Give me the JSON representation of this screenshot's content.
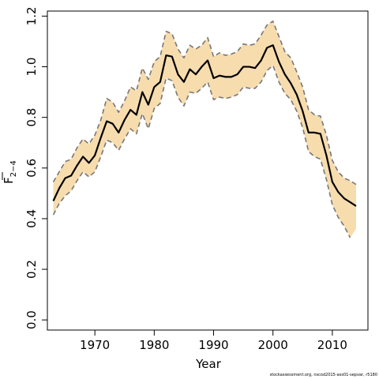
{
  "chart_data": {
    "type": "line",
    "title": "",
    "xlabel": "Year",
    "ylabel_main": "F",
    "ylabel_sub": "2−4",
    "xlim": [
      1962,
      2016
    ],
    "ylim": [
      -0.04,
      1.22
    ],
    "xticks": [
      1970,
      1980,
      1990,
      2000,
      2010
    ],
    "yticks": [
      0.0,
      0.2,
      0.4,
      0.6,
      0.8,
      1.0,
      1.2
    ],
    "ytick_labels": [
      "0.0",
      "0.2",
      "0.4",
      "0.6",
      "0.8",
      "1.0",
      "1.2"
    ],
    "grid": false,
    "legend": "none",
    "series": [
      {
        "role": "estimate",
        "color": "#000000",
        "x": [
          1963,
          1964,
          1965,
          1966,
          1967,
          1968,
          1969,
          1970,
          1971,
          1972,
          1973,
          1974,
          1975,
          1976,
          1977,
          1978,
          1979,
          1980,
          1981,
          1982,
          1983,
          1984,
          1985,
          1986,
          1987,
          1988,
          1989,
          1990,
          1991,
          1992,
          1993,
          1994,
          1995,
          1996,
          1997,
          1998,
          1999,
          2000,
          2001,
          2002,
          2003,
          2004,
          2005,
          2006,
          2007,
          2008,
          2009,
          2010,
          2011,
          2012,
          2013,
          2014
        ],
        "y": [
          0.47,
          0.52,
          0.56,
          0.57,
          0.61,
          0.645,
          0.62,
          0.65,
          0.72,
          0.785,
          0.775,
          0.74,
          0.79,
          0.83,
          0.81,
          0.9,
          0.85,
          0.92,
          0.94,
          1.045,
          1.04,
          0.97,
          0.94,
          0.99,
          0.97,
          1.0,
          1.025,
          0.955,
          0.965,
          0.96,
          0.96,
          0.97,
          1.0,
          1.0,
          0.995,
          1.025,
          1.075,
          1.085,
          1.02,
          0.97,
          0.935,
          0.89,
          0.825,
          0.74,
          0.74,
          0.735,
          0.65,
          0.545,
          0.505,
          0.48,
          0.465,
          0.45
        ]
      },
      {
        "role": "upper bound",
        "color": "#777777",
        "x": [
          1963,
          1964,
          1965,
          1966,
          1967,
          1968,
          1969,
          1970,
          1971,
          1972,
          1973,
          1974,
          1975,
          1976,
          1977,
          1978,
          1979,
          1980,
          1981,
          1982,
          1983,
          1984,
          1985,
          1986,
          1987,
          1988,
          1989,
          1990,
          1991,
          1992,
          1993,
          1994,
          1995,
          1996,
          1997,
          1998,
          1999,
          2000,
          2001,
          2002,
          2003,
          2004,
          2005,
          2006,
          2007,
          2008,
          2009,
          2010,
          2011,
          2012,
          2013,
          2014
        ],
        "y": [
          0.545,
          0.585,
          0.625,
          0.635,
          0.68,
          0.715,
          0.695,
          0.73,
          0.79,
          0.875,
          0.86,
          0.82,
          0.865,
          0.92,
          0.905,
          0.995,
          0.95,
          1.02,
          1.04,
          1.14,
          1.13,
          1.07,
          1.035,
          1.085,
          1.07,
          1.085,
          1.115,
          1.04,
          1.055,
          1.045,
          1.05,
          1.06,
          1.09,
          1.085,
          1.09,
          1.125,
          1.165,
          1.18,
          1.12,
          1.06,
          1.035,
          0.98,
          0.92,
          0.83,
          0.81,
          0.805,
          0.73,
          0.63,
          0.585,
          0.56,
          0.55,
          0.535
        ]
      },
      {
        "role": "lower bound",
        "color": "#777777",
        "x": [
          1963,
          1964,
          1965,
          1966,
          1967,
          1968,
          1969,
          1970,
          1971,
          1972,
          1973,
          1974,
          1975,
          1976,
          1977,
          1978,
          1979,
          1980,
          1981,
          1982,
          1983,
          1984,
          1985,
          1986,
          1987,
          1988,
          1989,
          1990,
          1991,
          1992,
          1993,
          1994,
          1995,
          1996,
          1997,
          1998,
          1999,
          2000,
          2001,
          2002,
          2003,
          2004,
          2005,
          2006,
          2007,
          2008,
          2009,
          2010,
          2011,
          2012,
          2013
        ],
        "y": [
          0.415,
          0.46,
          0.49,
          0.51,
          0.55,
          0.585,
          0.565,
          0.585,
          0.645,
          0.71,
          0.7,
          0.67,
          0.715,
          0.755,
          0.735,
          0.815,
          0.755,
          0.835,
          0.855,
          0.955,
          0.945,
          0.88,
          0.845,
          0.9,
          0.895,
          0.915,
          0.94,
          0.87,
          0.88,
          0.875,
          0.88,
          0.89,
          0.92,
          0.915,
          0.915,
          0.94,
          0.985,
          1.005,
          0.94,
          0.895,
          0.87,
          0.825,
          0.76,
          0.665,
          0.645,
          0.635,
          0.555,
          0.455,
          0.405,
          0.37,
          0.325
        ]
      }
    ],
    "band": {
      "role": "confidence band",
      "color": "#f7dcae",
      "x": [
        1963,
        1964,
        1965,
        1966,
        1967,
        1968,
        1969,
        1970,
        1971,
        1972,
        1973,
        1974,
        1975,
        1976,
        1977,
        1978,
        1979,
        1980,
        1981,
        1982,
        1983,
        1984,
        1985,
        1986,
        1987,
        1988,
        1989,
        1990,
        1991,
        1992,
        1993,
        1994,
        1995,
        1996,
        1997,
        1998,
        1999,
        2000,
        2001,
        2002,
        2003,
        2004,
        2005,
        2006,
        2007,
        2008,
        2009,
        2010,
        2011,
        2012,
        2013,
        2014
      ],
      "upper": [
        0.545,
        0.585,
        0.625,
        0.635,
        0.68,
        0.715,
        0.695,
        0.73,
        0.79,
        0.875,
        0.86,
        0.82,
        0.865,
        0.92,
        0.905,
        0.995,
        0.95,
        1.02,
        1.04,
        1.14,
        1.13,
        1.07,
        1.035,
        1.085,
        1.07,
        1.085,
        1.115,
        1.04,
        1.055,
        1.045,
        1.05,
        1.06,
        1.09,
        1.085,
        1.09,
        1.125,
        1.165,
        1.18,
        1.12,
        1.06,
        1.035,
        0.98,
        0.92,
        0.83,
        0.81,
        0.805,
        0.73,
        0.63,
        0.585,
        0.56,
        0.55,
        0.535
      ],
      "lower": [
        0.415,
        0.46,
        0.49,
        0.51,
        0.55,
        0.585,
        0.565,
        0.585,
        0.645,
        0.71,
        0.7,
        0.67,
        0.715,
        0.755,
        0.735,
        0.815,
        0.755,
        0.835,
        0.855,
        0.955,
        0.945,
        0.88,
        0.845,
        0.9,
        0.895,
        0.915,
        0.94,
        0.87,
        0.88,
        0.875,
        0.88,
        0.89,
        0.92,
        0.915,
        0.915,
        0.94,
        0.985,
        1.005,
        0.94,
        0.895,
        0.87,
        0.825,
        0.76,
        0.665,
        0.645,
        0.635,
        0.555,
        0.455,
        0.405,
        0.37,
        0.325,
        0.36
      ]
    },
    "caption": "stockassessment.org, nscod2015-ass01-sepvar, r5180"
  }
}
